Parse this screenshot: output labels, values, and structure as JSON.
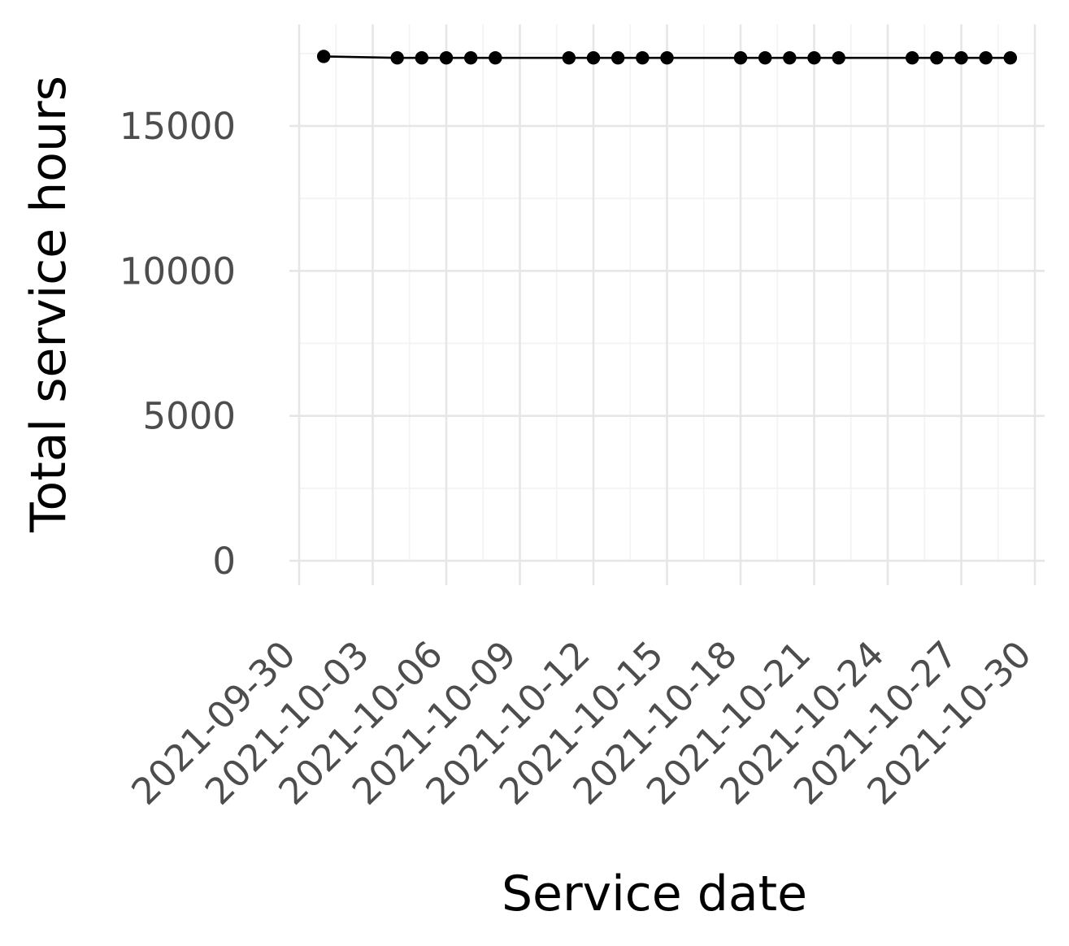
{
  "chart_data": {
    "type": "line",
    "xlabel": "Service date",
    "ylabel": "Total service hours",
    "x_is_date": true,
    "xlim": [
      "2021-09-30",
      "2021-10-30"
    ],
    "x_tick_labels": [
      "2021-09-30",
      "2021-10-03",
      "2021-10-06",
      "2021-10-09",
      "2021-10-12",
      "2021-10-15",
      "2021-10-18",
      "2021-10-21",
      "2021-10-24",
      "2021-10-27",
      "2021-10-30"
    ],
    "ylim": [
      0,
      18000
    ],
    "y_ticks": [
      0,
      5000,
      10000,
      15000
    ],
    "y_tick_labels": [
      "0",
      "5000",
      "10000",
      "15000"
    ],
    "grid": true,
    "legend": "none",
    "series": [
      {
        "color": "#000000",
        "x": [
          "2021-10-01",
          "2021-10-04",
          "2021-10-05",
          "2021-10-06",
          "2021-10-07",
          "2021-10-08",
          "2021-10-11",
          "2021-10-12",
          "2021-10-13",
          "2021-10-14",
          "2021-10-15",
          "2021-10-18",
          "2021-10-19",
          "2021-10-20",
          "2021-10-21",
          "2021-10-22",
          "2021-10-25",
          "2021-10-26",
          "2021-10-27",
          "2021-10-28",
          "2021-10-29"
        ],
        "y": [
          17400,
          17350,
          17350,
          17350,
          17350,
          17350,
          17350,
          17350,
          17350,
          17350,
          17350,
          17350,
          17350,
          17350,
          17350,
          17350,
          17350,
          17350,
          17350,
          17350,
          17350
        ]
      }
    ]
  }
}
